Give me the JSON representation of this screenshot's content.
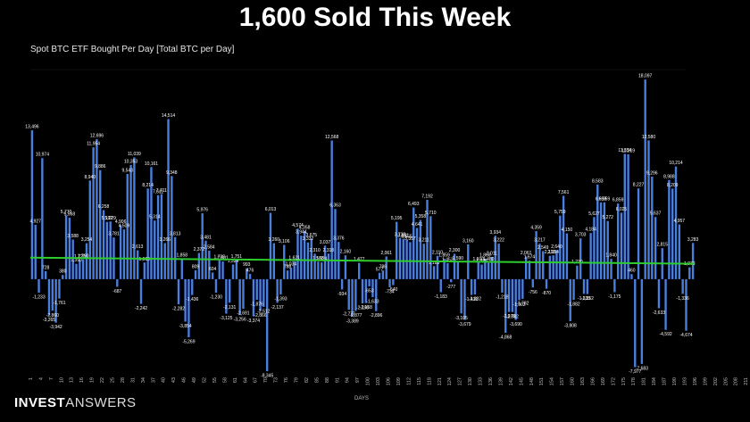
{
  "header": {
    "title": "1,600 Sold This Week"
  },
  "brand": {
    "bold": "INVEST",
    "light": "ANSWERS"
  },
  "colors": {
    "bar": "#4a7fe0",
    "trend": "#2ecc2e",
    "background": "#000000",
    "text": "#ffffff"
  },
  "chart_data": {
    "type": "bar",
    "title": "Spot BTC ETF Bought Per Day [Total BTC per Day]",
    "xlabel": "DAYS",
    "ylabel": "",
    "ylim": [
      -8500,
      19000
    ],
    "grid": false,
    "x_tick_labels": [
      "1",
      "4",
      "7",
      "10",
      "13",
      "16",
      "19",
      "22",
      "25",
      "28",
      "31",
      "34",
      "37",
      "40",
      "43",
      "46",
      "49",
      "52",
      "55",
      "58",
      "61",
      "64",
      "67",
      "70",
      "73",
      "76",
      "79",
      "82",
      "85",
      "88",
      "91",
      "94",
      "97",
      "100",
      "103",
      "106",
      "109",
      "112",
      "115",
      "118",
      "121",
      "124",
      "127",
      "130",
      "133",
      "136",
      "139",
      "142",
      "145",
      "148",
      "151",
      "154",
      "157",
      "160",
      "163",
      "166",
      "169",
      "172",
      "175",
      "178",
      "181",
      "184",
      "187",
      "190",
      "193",
      "196",
      "199",
      "202",
      "205",
      "208",
      "211",
      "214",
      "217",
      "220",
      "223"
    ],
    "series": [
      {
        "values": [
          13496,
          4927,
          -1233,
          10974,
          728,
          -3265,
          -2860,
          -3942,
          -1761,
          380,
          5770,
          5568,
          3588,
          1390,
          1720,
          1790,
          3254,
          8940,
          11954,
          12696,
          9886,
          6258,
          5192,
          5229,
          3781,
          -687,
          4906,
          4509,
          9543,
          10353,
          11039,
          2613,
          -2242,
          1509,
          8214,
          10161,
          5314,
          7611,
          7711,
          3266,
          14514,
          9348,
          3813,
          -2282,
          1858,
          -3854,
          -5269,
          -1436,
          809,
          2372,
          5976,
          3481,
          2584,
          604,
          -1230,
          1705,
          1601,
          -3125,
          -2131,
          1324,
          1751,
          -3256,
          -2691,
          993,
          476,
          -3374,
          -1876,
          -2866,
          -2512,
          -8345,
          6013,
          3260,
          -2137,
          -1393,
          3106,
          788,
          1034,
          1621,
          4574,
          3944,
          4358,
          3332,
          3675,
          2310,
          1588,
          1524,
          3037,
          2318,
          12568,
          6363,
          3376,
          -934,
          2160,
          -2777,
          -3389,
          -2877,
          1477,
          -2196,
          -2158,
          -653,
          -1633,
          -2896,
          577,
          786,
          2061,
          -734,
          -540,
          5195,
          3728,
          3651,
          3555,
          3357,
          6493,
          4641,
          5358,
          3211,
          7192,
          5710,
          1183,
          2110,
          -1183,
          1859,
          1453,
          -277,
          2300,
          1590,
          -3105,
          -3679,
          3160,
          -1431,
          -1382,
          1500,
          1320,
          1860,
          1480,
          2011,
          3934,
          3222,
          -1218,
          -4868,
          -2975,
          -2982,
          -3690,
          -1902,
          -1782,
          2061,
          1674,
          -756,
          4359,
          3217,
          2549,
          -870,
          2118,
          2154,
          2640,
          5759,
          7561,
          4150,
          -3808,
          -1882,
          1230,
          3703,
          -1333,
          -1352,
          4184,
          5627,
          8583,
          6959,
          6959,
          5272,
          1840,
          -1175,
          6859,
          6025,
          11354,
          11319,
          460,
          -7977,
          8227,
          -7683,
          18097,
          12580,
          9296,
          5637,
          -2633,
          2815,
          -4592,
          8988,
          8209,
          10214,
          4957,
          -1336,
          -4674,
          1073,
          3283
        ]
      }
    ],
    "series_labels": [
      "Spot BTC ETF Bought Per Day",
      "Trend"
    ],
    "trend": {
      "start": 1950,
      "end": 1400
    }
  }
}
